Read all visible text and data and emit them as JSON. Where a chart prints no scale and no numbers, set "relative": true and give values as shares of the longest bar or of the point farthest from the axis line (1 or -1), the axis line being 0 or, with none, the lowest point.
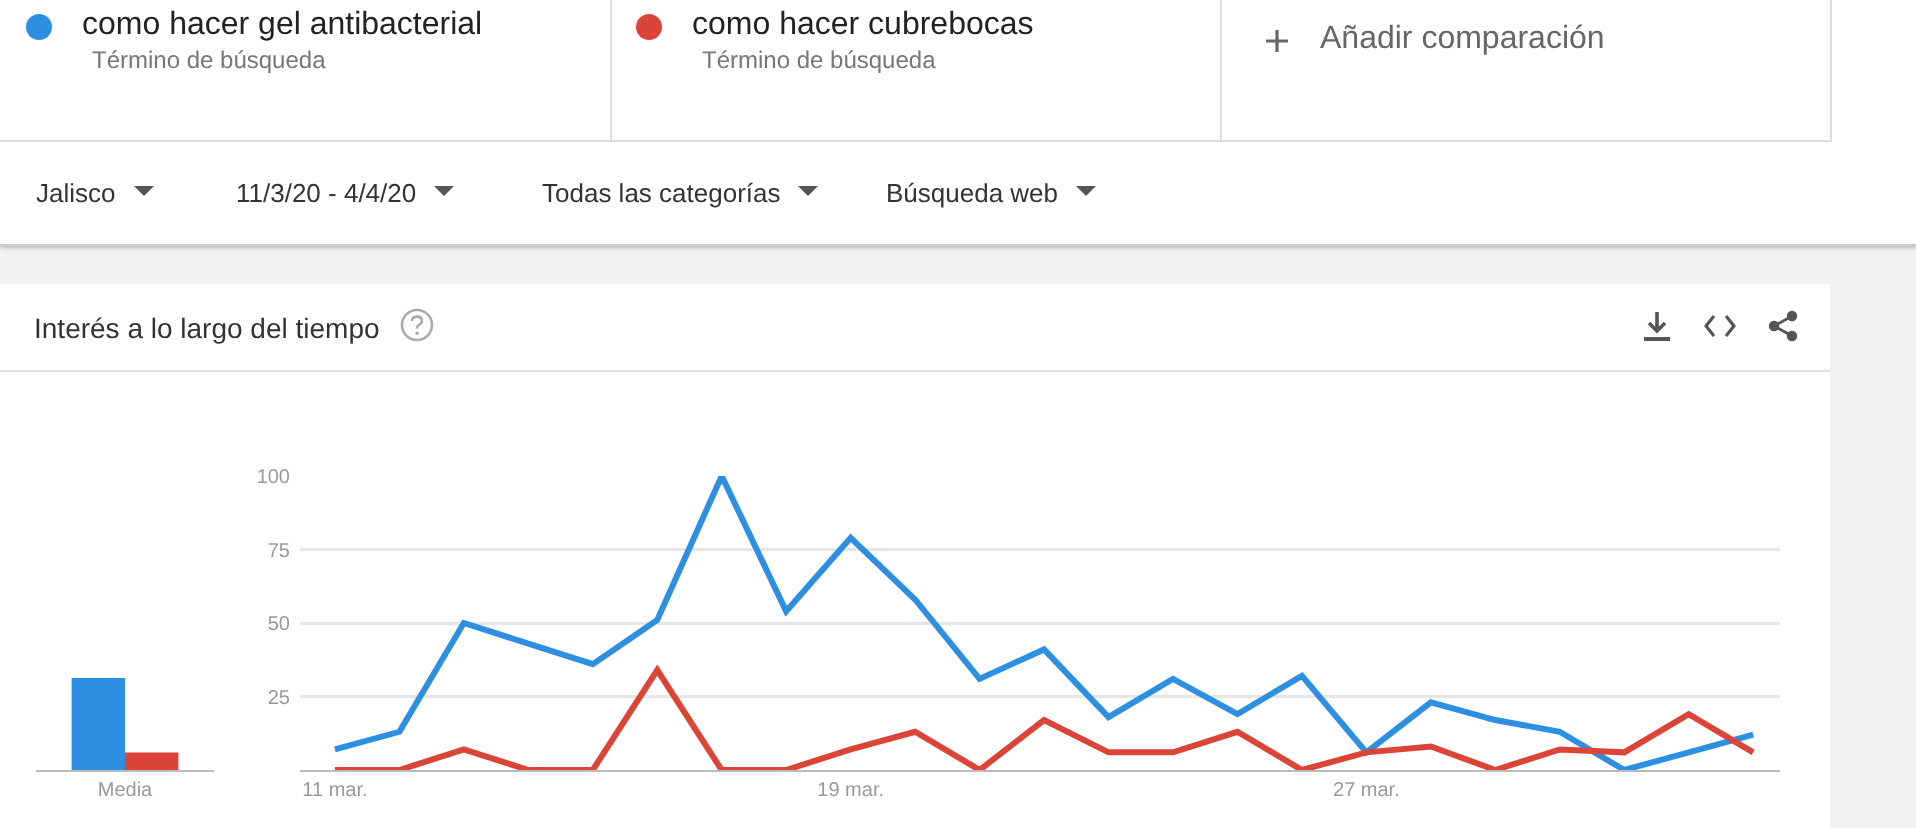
{
  "chart_data": [
    {
      "type": "line",
      "title": "Interés a lo largo del tiempo",
      "x": [
        "--03-11",
        "--03-12",
        "--03-13",
        "--03-14",
        "--03-15",
        "--03-16",
        "--03-17",
        "--03-18",
        "--03-19",
        "--03-20",
        "--03-21",
        "--03-22",
        "--03-23",
        "--03-24",
        "--03-25",
        "--03-26",
        "--03-27",
        "--03-28",
        "--03-29",
        "--03-30",
        "--03-31",
        "--04-01",
        "--04-02"
      ],
      "series": [
        {
          "name": "como hacer gel antibacterial",
          "color": "#2d8fe2",
          "values": [
            7,
            13,
            50,
            43,
            36,
            51,
            100,
            54,
            79,
            58,
            31,
            41,
            18,
            31,
            19,
            32,
            6,
            23,
            17,
            13,
            0,
            6,
            12
          ]
        },
        {
          "name": "como hacer cubrebocas",
          "color": "#db4437",
          "values": [
            0,
            0,
            7,
            0,
            0,
            34,
            0,
            0,
            7,
            13,
            0,
            17,
            6,
            6,
            13,
            0,
            6,
            8,
            0,
            7,
            6,
            19,
            6
          ]
        }
      ],
      "xlim": [
        "--03-10T11:00",
        "--04-02T10:00"
      ],
      "xticks": [
        {
          "value": "--03-11",
          "label": "11 mar."
        },
        {
          "value": "--03-19",
          "label": "19 mar."
        },
        {
          "value": "--03-27",
          "label": "27 mar."
        }
      ],
      "ylim": [
        0,
        100
      ],
      "yticks": [
        {
          "value": 0,
          "label": null
        },
        25,
        50,
        75,
        100
      ],
      "grid": "y",
      "legend": "top left",
      "marker": "none",
      "line_style": "solid",
      "annotations": [
        "Término de búsqueda",
        "Término de búsqueda",
        "Añadir comparación",
        "Jalisco",
        "11/3/20 - 4/4/20",
        "Todas las categorías",
        "Búsqueda web"
      ]
    },
    {
      "type": "bar",
      "categories": [
        "Media"
      ],
      "relative": true,
      "series": [
        {
          "color": "#2d8fe2",
          "values": [
            1
          ]
        },
        {
          "color": "#db4437",
          "values": [
            0.19
          ]
        }
      ]
    }
  ]
}
